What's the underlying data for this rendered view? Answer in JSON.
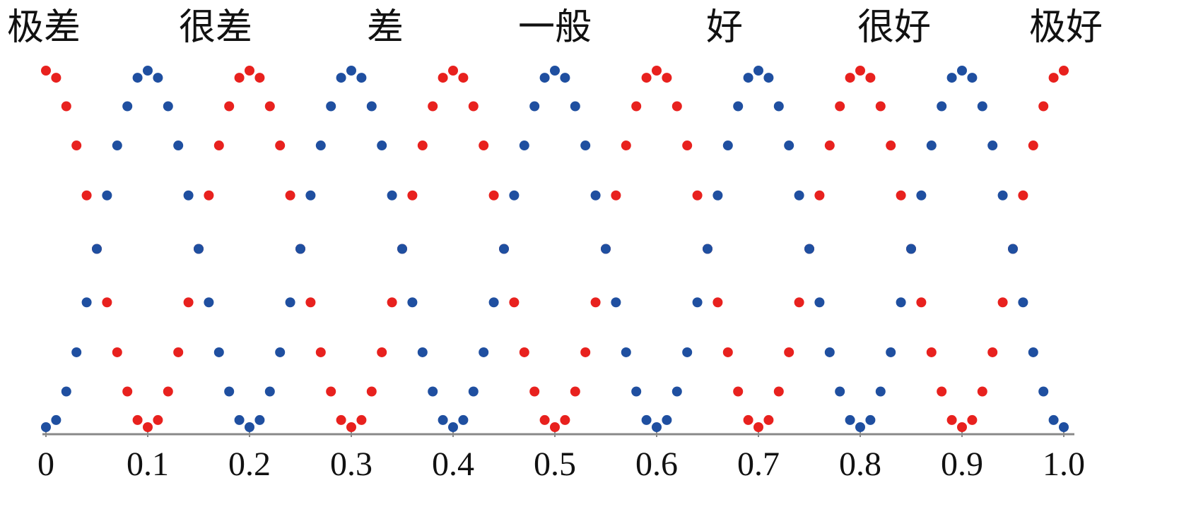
{
  "chart_data": {
    "type": "scatter",
    "annotations": [
      "极差",
      "很差",
      "差",
      "一般",
      "好",
      "很好",
      "极好"
    ],
    "x": [
      0,
      0.01,
      0.02,
      0.03,
      0.04,
      0.05,
      0.06,
      0.07,
      0.08,
      0.09,
      0.1,
      0.11,
      0.12,
      0.13,
      0.14,
      0.15,
      0.16,
      0.17,
      0.18,
      0.19,
      0.2,
      0.21,
      0.22,
      0.23,
      0.24,
      0.25,
      0.26,
      0.27,
      0.28,
      0.29,
      0.3,
      0.31,
      0.32,
      0.33,
      0.34,
      0.35,
      0.36,
      0.37,
      0.38,
      0.39,
      0.4,
      0.41,
      0.42,
      0.43,
      0.44,
      0.45,
      0.46,
      0.47,
      0.48,
      0.49,
      0.5,
      0.51,
      0.52,
      0.53,
      0.54,
      0.55,
      0.56,
      0.57,
      0.58,
      0.59,
      0.6,
      0.61,
      0.62,
      0.63,
      0.64,
      0.65,
      0.66,
      0.67,
      0.68,
      0.69,
      0.7,
      0.71,
      0.72,
      0.73,
      0.74,
      0.75,
      0.76,
      0.77,
      0.78,
      0.79,
      0.8,
      0.81,
      0.82,
      0.83,
      0.84,
      0.85,
      0.86,
      0.87,
      0.88,
      0.89,
      0.9,
      0.91,
      0.92,
      0.93,
      0.94,
      0.95,
      0.96,
      0.97,
      0.98,
      0.99,
      1
    ],
    "series": [
      {
        "color": "#e8211e",
        "values": [
          1,
          0.98,
          0.9,
          0.79,
          0.65,
          0.5,
          0.35,
          0.21,
          0.1,
          0.02,
          0,
          0.02,
          0.1,
          0.21,
          0.35,
          0.5,
          0.65,
          0.79,
          0.9,
          0.98,
          1,
          0.98,
          0.9,
          0.79,
          0.65,
          0.5,
          0.35,
          0.21,
          0.1,
          0.02,
          0,
          0.02,
          0.1,
          0.21,
          0.35,
          0.5,
          0.65,
          0.79,
          0.9,
          0.98,
          1,
          0.98,
          0.9,
          0.79,
          0.65,
          0.5,
          0.35,
          0.21,
          0.1,
          0.02,
          0,
          0.02,
          0.1,
          0.21,
          0.35,
          0.5,
          0.65,
          0.79,
          0.9,
          0.98,
          1,
          0.98,
          0.9,
          0.79,
          0.65,
          0.5,
          0.35,
          0.21,
          0.1,
          0.02,
          0,
          0.02,
          0.1,
          0.21,
          0.35,
          0.5,
          0.65,
          0.79,
          0.9,
          0.98,
          1,
          0.98,
          0.9,
          0.79,
          0.65,
          0.5,
          0.35,
          0.21,
          0.1,
          0.02,
          0,
          0.02,
          0.1,
          0.21,
          0.35,
          0.5,
          0.65,
          0.79,
          0.9,
          0.98,
          1
        ]
      },
      {
        "color": "#1f4fa0",
        "values": [
          0,
          0.02,
          0.1,
          0.21,
          0.35,
          0.5,
          0.65,
          0.79,
          0.9,
          0.98,
          1,
          0.98,
          0.9,
          0.79,
          0.65,
          0.5,
          0.35,
          0.21,
          0.1,
          0.02,
          0,
          0.02,
          0.1,
          0.21,
          0.35,
          0.5,
          0.65,
          0.79,
          0.9,
          0.98,
          1,
          0.98,
          0.9,
          0.79,
          0.65,
          0.5,
          0.35,
          0.21,
          0.1,
          0.02,
          0,
          0.02,
          0.1,
          0.21,
          0.35,
          0.5,
          0.65,
          0.79,
          0.9,
          0.98,
          1,
          0.98,
          0.9,
          0.79,
          0.65,
          0.5,
          0.35,
          0.21,
          0.1,
          0.02,
          0,
          0.02,
          0.1,
          0.21,
          0.35,
          0.5,
          0.65,
          0.79,
          0.9,
          0.98,
          1,
          0.98,
          0.9,
          0.79,
          0.65,
          0.5,
          0.35,
          0.21,
          0.1,
          0.02,
          0,
          0.02,
          0.1,
          0.21,
          0.35,
          0.5,
          0.65,
          0.79,
          0.9,
          0.98,
          1,
          0.98,
          0.9,
          0.79,
          0.65,
          0.5,
          0.35,
          0.21,
          0.1,
          0.02,
          0
        ]
      }
    ],
    "xlim": [
      0,
      1
    ],
    "ylim": [
      0,
      1
    ],
    "xticks": [
      0,
      0.1,
      0.2,
      0.3,
      0.4,
      0.5,
      0.6,
      0.7,
      0.8,
      0.9,
      {
        "value": 1,
        "label": "1.0"
      }
    ],
    "grid": false
  }
}
